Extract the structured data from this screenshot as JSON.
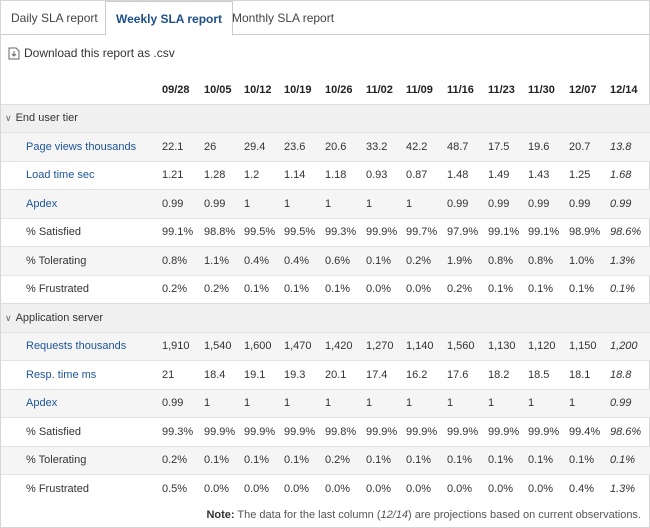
{
  "tabs": [
    {
      "label": "Daily SLA report",
      "active": false
    },
    {
      "label": "Weekly SLA report",
      "active": true
    },
    {
      "label": "Monthly SLA report",
      "active": false
    }
  ],
  "download_label": "Download this report as .csv",
  "columns": [
    "09/28",
    "10/05",
    "10/12",
    "10/19",
    "10/26",
    "11/02",
    "11/09",
    "11/16",
    "11/23",
    "11/30",
    "12/07",
    "12/14"
  ],
  "sections": [
    {
      "title": "End user tier",
      "rows": [
        {
          "label": "Page views thousands",
          "link": true,
          "values": [
            "22.1",
            "26",
            "29.4",
            "23.6",
            "20.6",
            "33.2",
            "42.2",
            "48.7",
            "17.5",
            "19.6",
            "20.7",
            "13.8"
          ]
        },
        {
          "label": "Load time sec",
          "link": true,
          "values": [
            "1.21",
            "1.28",
            "1.2",
            "1.14",
            "1.18",
            "0.93",
            "0.87",
            "1.48",
            "1.49",
            "1.43",
            "1.25",
            "1.68"
          ]
        },
        {
          "label": "Apdex",
          "link": true,
          "values": [
            "0.99",
            "0.99",
            "1",
            "1",
            "1",
            "1",
            "1",
            "0.99",
            "0.99",
            "0.99",
            "0.99",
            "0.99"
          ]
        },
        {
          "label": "% Satisfied",
          "link": false,
          "values": [
            "99.1%",
            "98.8%",
            "99.5%",
            "99.5%",
            "99.3%",
            "99.9%",
            "99.7%",
            "97.9%",
            "99.1%",
            "99.1%",
            "98.9%",
            "98.6%"
          ]
        },
        {
          "label": "% Tolerating",
          "link": false,
          "values": [
            "0.8%",
            "1.1%",
            "0.4%",
            "0.4%",
            "0.6%",
            "0.1%",
            "0.2%",
            "1.9%",
            "0.8%",
            "0.8%",
            "1.0%",
            "1.3%"
          ]
        },
        {
          "label": "% Frustrated",
          "link": false,
          "values": [
            "0.2%",
            "0.2%",
            "0.1%",
            "0.1%",
            "0.1%",
            "0.0%",
            "0.0%",
            "0.2%",
            "0.1%",
            "0.1%",
            "0.1%",
            "0.1%"
          ]
        }
      ]
    },
    {
      "title": "Application server",
      "rows": [
        {
          "label": "Requests thousands",
          "link": true,
          "values": [
            "1,910",
            "1,540",
            "1,600",
            "1,470",
            "1,420",
            "1,270",
            "1,140",
            "1,560",
            "1,130",
            "1,120",
            "1,150",
            "1,200"
          ]
        },
        {
          "label": "Resp. time ms",
          "link": true,
          "values": [
            "21",
            "18.4",
            "19.1",
            "19.3",
            "20.1",
            "17.4",
            "16.2",
            "17.6",
            "18.2",
            "18.5",
            "18.1",
            "18.8"
          ]
        },
        {
          "label": "Apdex",
          "link": true,
          "values": [
            "0.99",
            "1",
            "1",
            "1",
            "1",
            "1",
            "1",
            "1",
            "1",
            "1",
            "1",
            "0.99"
          ]
        },
        {
          "label": "% Satisfied",
          "link": false,
          "values": [
            "99.3%",
            "99.9%",
            "99.9%",
            "99.9%",
            "99.8%",
            "99.9%",
            "99.9%",
            "99.9%",
            "99.9%",
            "99.9%",
            "99.4%",
            "98.6%"
          ]
        },
        {
          "label": "% Tolerating",
          "link": false,
          "values": [
            "0.2%",
            "0.1%",
            "0.1%",
            "0.1%",
            "0.2%",
            "0.1%",
            "0.1%",
            "0.1%",
            "0.1%",
            "0.1%",
            "0.1%",
            "0.1%"
          ]
        },
        {
          "label": "% Frustrated",
          "link": false,
          "values": [
            "0.5%",
            "0.0%",
            "0.0%",
            "0.0%",
            "0.0%",
            "0.0%",
            "0.0%",
            "0.0%",
            "0.0%",
            "0.0%",
            "0.4%",
            "1.3%"
          ]
        }
      ]
    }
  ],
  "note": {
    "prefix": "Note:",
    "text_before": " The data for the last column (",
    "column": "12/14",
    "text_after": ") are projections based on current observations."
  },
  "icons": {
    "download": "download-file-icon",
    "section_toggle": "chevron-down-icon"
  }
}
